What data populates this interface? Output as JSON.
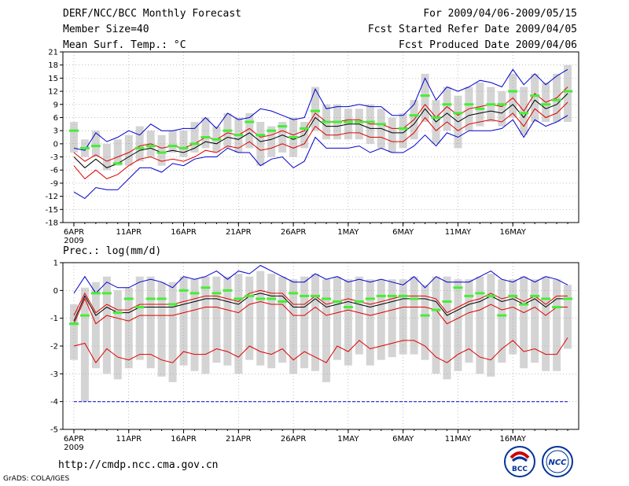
{
  "header": {
    "title": "DERF/NCC/BCC Monthly Forecast",
    "member_size": "Member Size=40",
    "variable_temp": "Mean Surf. Temp.: °C",
    "period": "For 2009/04/06-2009/05/15",
    "started": "Fcst Started Refer Date 2009/04/05",
    "produced": "Fcst Produced Date 2009/04/06"
  },
  "footer": {
    "url": "http://cmdp.ncc.cma.gov.cn",
    "grads": "GrADS: COLA/IGES",
    "logo_bcc": "BCC",
    "logo_ncc": "NCC"
  },
  "colors": {
    "mean": "#000000",
    "spread": "#e00000",
    "extreme": "#0000d0",
    "obs": "#44ee33",
    "box": "#d4d4d4"
  },
  "chart_data": [
    {
      "type": "line",
      "title": "Mean Surf. Temp.: °C",
      "x_ticks": [
        "6APR",
        "11APR",
        "16APR",
        "21APR",
        "26APR",
        "1MAY",
        "6MAY",
        "11MAY",
        "16MAY"
      ],
      "x_year": "2009",
      "ylim": [
        -18,
        21
      ],
      "y_ticks": [
        "-18",
        "-15",
        "-12",
        "-9",
        "-6",
        "-3",
        "0",
        "3",
        "6",
        "9",
        "12",
        "15",
        "18",
        "21"
      ],
      "series": [
        {
          "name": "ensemble-mean",
          "values": [
            -3,
            -5.5,
            -3.5,
            -5.5,
            -4.5,
            -3,
            -1.5,
            -1,
            -2,
            -1.5,
            -2,
            -1,
            0.5,
            0,
            1.5,
            1,
            2.5,
            0.5,
            1,
            2,
            1,
            2,
            6,
            4,
            4,
            4.5,
            4.5,
            3.5,
            3.5,
            2.5,
            2.5,
            4.5,
            8,
            5,
            7,
            5,
            6.5,
            7,
            7.5,
            7,
            9,
            6,
            10,
            8,
            9,
            11.5
          ]
        },
        {
          "name": "spread-upper",
          "values": [
            -2,
            -4,
            -2.5,
            -4,
            -3,
            -2,
            -0.5,
            0,
            -1,
            -0.5,
            -1,
            0,
            1.5,
            1,
            2.5,
            2,
            3.5,
            1.5,
            2,
            3,
            2,
            3,
            7,
            5,
            5,
            5.5,
            5.5,
            4.5,
            4.5,
            3.5,
            3.5,
            5.5,
            9,
            6,
            8.5,
            6.5,
            8,
            8.5,
            9,
            8.5,
            10.5,
            7.5,
            11.5,
            9.5,
            10.5,
            13
          ]
        },
        {
          "name": "spread-lower",
          "values": [
            -5,
            -8,
            -6,
            -8,
            -7,
            -5,
            -3.5,
            -3,
            -4,
            -3.5,
            -4,
            -3,
            -1.5,
            -2,
            -0.5,
            -1,
            0.5,
            -1.5,
            -1,
            0,
            -1,
            0,
            4,
            2,
            2,
            2.5,
            2.5,
            1.5,
            1.5,
            0.5,
            0.5,
            2.5,
            6,
            3,
            5,
            3,
            4.5,
            5,
            5.5,
            5,
            7,
            4,
            8,
            6,
            7,
            9.5
          ]
        },
        {
          "name": "max",
          "values": [
            -1,
            -1.5,
            2.5,
            0.5,
            1.5,
            3,
            2,
            4.5,
            3,
            3,
            3.5,
            3.5,
            6,
            3.5,
            7,
            5.5,
            6,
            8,
            7.5,
            6.5,
            5.5,
            6,
            12.5,
            8,
            8.5,
            8.5,
            9,
            8.5,
            8.5,
            6.5,
            6.5,
            9,
            15,
            10,
            13,
            12,
            13,
            14.5,
            14,
            13,
            17,
            13.5,
            16,
            13.5,
            15.5,
            17
          ]
        },
        {
          "name": "min",
          "values": [
            -11,
            -12.5,
            -10,
            -10.5,
            -10.5,
            -8,
            -5.5,
            -5.5,
            -6.5,
            -4.5,
            -5,
            -3.5,
            -3,
            -3,
            -1,
            -2,
            -2,
            -5,
            -3.5,
            -3,
            -5.5,
            -4,
            1.5,
            -1,
            -1,
            -1,
            -0.5,
            -2,
            -1,
            -2,
            -2,
            -0.5,
            2,
            -0.5,
            2.5,
            1.5,
            3,
            3,
            3,
            3.5,
            5.5,
            1.5,
            5.5,
            4,
            5,
            6.5
          ]
        },
        {
          "name": "observed",
          "values": [
            3,
            -1,
            -0.5,
            null,
            -4.5,
            null,
            -1,
            -0.5,
            -2,
            -0.5,
            -1,
            0,
            1.5,
            1,
            3,
            2,
            5,
            2,
            3,
            4,
            1.5,
            3.5,
            7.5,
            5,
            5,
            5,
            5,
            5,
            4.5,
            null,
            3.5,
            6.5,
            11,
            6,
            9,
            7,
            9,
            8,
            9,
            9,
            12,
            7,
            11,
            9,
            10,
            12
          ]
        }
      ],
      "boxes": [
        [
          -2,
          5
        ],
        [
          -3,
          1
        ],
        [
          -3,
          3
        ],
        [
          -6,
          0
        ],
        [
          -5,
          1
        ],
        [
          -5,
          2
        ],
        [
          -4,
          4
        ],
        [
          -3,
          3
        ],
        [
          -5,
          2
        ],
        [
          -2,
          3
        ],
        [
          -3,
          3
        ],
        [
          -2,
          5
        ],
        [
          -1,
          6
        ],
        [
          -2,
          4
        ],
        [
          -1,
          7
        ],
        [
          -2,
          6
        ],
        [
          -1,
          7
        ],
        [
          -5,
          5
        ],
        [
          -3,
          4
        ],
        [
          -2,
          5
        ],
        [
          -3,
          6
        ],
        [
          -1,
          5
        ],
        [
          3,
          13
        ],
        [
          1,
          9
        ],
        [
          1,
          9
        ],
        [
          1,
          8
        ],
        [
          1,
          8
        ],
        [
          0,
          9
        ],
        [
          -1,
          8
        ],
        [
          -2,
          6
        ],
        [
          -1,
          7
        ],
        [
          1,
          10
        ],
        [
          5,
          16
        ],
        [
          0,
          10
        ],
        [
          3,
          13
        ],
        [
          -1,
          11
        ],
        [
          3,
          13
        ],
        [
          4,
          14
        ],
        [
          5,
          13
        ],
        [
          4,
          12
        ],
        [
          6,
          16
        ],
        [
          2,
          13
        ],
        [
          5,
          16
        ],
        [
          5,
          14
        ],
        [
          5,
          16
        ],
        [
          5,
          18
        ]
      ]
    },
    {
      "type": "line",
      "title": "Prec.: log(mm/d)",
      "x_ticks": [
        "6APR",
        "11APR",
        "16APR",
        "21APR",
        "26APR",
        "1MAY",
        "6MAY",
        "11MAY",
        "16MAY"
      ],
      "x_year": "2009",
      "ylim": [
        -5,
        1
      ],
      "y_ticks": [
        "-5",
        "-4",
        "-3",
        "-2",
        "-1",
        "0",
        "1"
      ],
      "series": [
        {
          "name": "ensemble-mean",
          "values": [
            -1.1,
            -0.2,
            -0.9,
            -0.6,
            -0.8,
            -0.8,
            -0.6,
            -0.6,
            -0.6,
            -0.6,
            -0.5,
            -0.4,
            -0.3,
            -0.3,
            -0.4,
            -0.5,
            -0.2,
            -0.1,
            -0.2,
            -0.2,
            -0.6,
            -0.6,
            -0.3,
            -0.6,
            -0.5,
            -0.4,
            -0.5,
            -0.6,
            -0.5,
            -0.4,
            -0.3,
            -0.3,
            -0.3,
            -0.4,
            -0.9,
            -0.7,
            -0.5,
            -0.4,
            -0.2,
            -0.4,
            -0.3,
            -0.5,
            -0.3,
            -0.6,
            -0.3,
            -0.3
          ]
        },
        {
          "name": "spread-upper",
          "values": [
            -0.9,
            -0.1,
            -0.8,
            -0.5,
            -0.7,
            -0.7,
            -0.5,
            -0.5,
            -0.5,
            -0.5,
            -0.4,
            -0.3,
            -0.2,
            -0.2,
            -0.3,
            -0.4,
            -0.1,
            0.0,
            -0.1,
            -0.1,
            -0.5,
            -0.5,
            -0.2,
            -0.5,
            -0.4,
            -0.3,
            -0.4,
            -0.5,
            -0.4,
            -0.3,
            -0.2,
            -0.2,
            -0.2,
            -0.3,
            -0.8,
            -0.6,
            -0.4,
            -0.3,
            -0.1,
            -0.3,
            -0.2,
            -0.4,
            -0.2,
            -0.5,
            -0.2,
            -0.2
          ]
        },
        {
          "name": "spread-lower",
          "values": [
            -1.2,
            -0.3,
            -1.2,
            -0.9,
            -1.0,
            -1.1,
            -0.9,
            -0.9,
            -0.9,
            -0.9,
            -0.8,
            -0.7,
            -0.6,
            -0.6,
            -0.7,
            -0.8,
            -0.5,
            -0.4,
            -0.5,
            -0.5,
            -0.9,
            -0.9,
            -0.6,
            -0.9,
            -0.8,
            -0.7,
            -0.8,
            -0.9,
            -0.8,
            -0.7,
            -0.6,
            -0.6,
            -0.6,
            -0.7,
            -1.2,
            -1.0,
            -0.8,
            -0.7,
            -0.5,
            -0.7,
            -0.6,
            -0.8,
            -0.6,
            -0.9,
            -0.6,
            -0.6
          ]
        },
        {
          "name": "p10",
          "values": [
            -2.0,
            -1.9,
            -2.6,
            -2.1,
            -2.4,
            -2.5,
            -2.3,
            -2.3,
            -2.5,
            -2.6,
            -2.2,
            -2.3,
            -2.3,
            -2.1,
            -2.2,
            -2.4,
            -2.0,
            -2.2,
            -2.3,
            -2.1,
            -2.5,
            -2.2,
            -2.4,
            -2.6,
            -2.0,
            -2.2,
            -1.8,
            -2.1,
            -2.0,
            -1.9,
            -1.8,
            -1.8,
            -2.0,
            -2.4,
            -2.6,
            -2.3,
            -2.1,
            -2.4,
            -2.5,
            -2.1,
            -1.8,
            -2.2,
            -2.1,
            -2.3,
            -2.3,
            -1.7
          ]
        },
        {
          "name": "max",
          "values": [
            -0.1,
            0.5,
            -0.1,
            0.3,
            0.1,
            0.1,
            0.3,
            0.4,
            0.3,
            0.1,
            0.5,
            0.4,
            0.5,
            0.7,
            0.4,
            0.7,
            0.6,
            0.9,
            0.7,
            0.5,
            0.3,
            0.3,
            0.6,
            0.4,
            0.5,
            0.3,
            0.4,
            0.3,
            0.4,
            0.3,
            0.2,
            0.5,
            0.1,
            0.5,
            0.3,
            0.3,
            0.3,
            0.5,
            0.7,
            0.4,
            0.3,
            0.5,
            0.3,
            0.5,
            0.4,
            0.2
          ]
        },
        {
          "name": "observed",
          "values": [
            -1.2,
            -0.9,
            -0.1,
            -0.1,
            -0.8,
            -0.3,
            -0.6,
            -0.3,
            -0.3,
            -0.5,
            0.0,
            -0.1,
            0.1,
            -0.1,
            0.0,
            -0.3,
            -0.2,
            -0.3,
            -0.3,
            -0.4,
            -0.1,
            -0.2,
            -0.2,
            -0.3,
            -0.4,
            -0.6,
            -0.4,
            -0.3,
            -0.2,
            -0.2,
            -0.2,
            -0.3,
            -0.9,
            -0.7,
            -0.4,
            0.1,
            -0.2,
            -0.1,
            -0.2,
            -0.9,
            -0.2,
            -0.5,
            -0.2,
            -0.3,
            -0.6,
            -0.3
          ]
        },
        {
          "name": "min",
          "values": [
            -4,
            -4,
            -4,
            -4,
            -4,
            -4,
            -4,
            -4,
            -4,
            -4,
            -4,
            -4,
            -4,
            -4,
            -4,
            -4,
            -4,
            -4,
            -4,
            -4,
            -4,
            -4,
            -4,
            -4,
            -4,
            -4,
            -4,
            -4,
            -4,
            -4,
            -4,
            -4,
            -4,
            -4,
            -4,
            -4,
            -4,
            -4,
            -4,
            -4,
            -4,
            -4,
            -4,
            -4,
            -4,
            -4
          ]
        }
      ],
      "boxes": [
        [
          -2.5,
          -0.5
        ],
        [
          -4,
          0.1
        ],
        [
          -2.8,
          0.3
        ],
        [
          -3,
          0.5
        ],
        [
          -3.2,
          0
        ],
        [
          -2.8,
          0.1
        ],
        [
          -2.5,
          0.5
        ],
        [
          -2.8,
          0.5
        ],
        [
          -3.1,
          0.3
        ],
        [
          -3.3,
          0.3
        ],
        [
          -2.7,
          0.5
        ],
        [
          -2.9,
          0.4
        ],
        [
          -3,
          0.5
        ],
        [
          -2.6,
          0.5
        ],
        [
          -2.7,
          0.5
        ],
        [
          -3,
          0.6
        ],
        [
          -2.5,
          0.5
        ],
        [
          -2.7,
          0.7
        ],
        [
          -2.8,
          0.6
        ],
        [
          -2.6,
          0.5
        ],
        [
          -3,
          0.4
        ],
        [
          -2.8,
          0.5
        ],
        [
          -2.9,
          0.6
        ],
        [
          -3.3,
          0.4
        ],
        [
          -2.5,
          0.5
        ],
        [
          -2.7,
          0.4
        ],
        [
          -2.3,
          0.5
        ],
        [
          -2.7,
          0.4
        ],
        [
          -2.5,
          0.4
        ],
        [
          -2.4,
          0.4
        ],
        [
          -2.3,
          0.4
        ],
        [
          -2.3,
          0.5
        ],
        [
          -2.5,
          0.2
        ],
        [
          -3,
          0.5
        ],
        [
          -3.2,
          0.5
        ],
        [
          -2.9,
          0.4
        ],
        [
          -2.6,
          0.4
        ],
        [
          -3,
          0.5
        ],
        [
          -3.1,
          0.6
        ],
        [
          -2.6,
          0.4
        ],
        [
          -2.3,
          0.4
        ],
        [
          -2.8,
          0.5
        ],
        [
          -2.6,
          0.4
        ],
        [
          -2.9,
          0.5
        ],
        [
          -2.9,
          0.4
        ],
        [
          -2.1,
          0.2
        ]
      ]
    }
  ]
}
